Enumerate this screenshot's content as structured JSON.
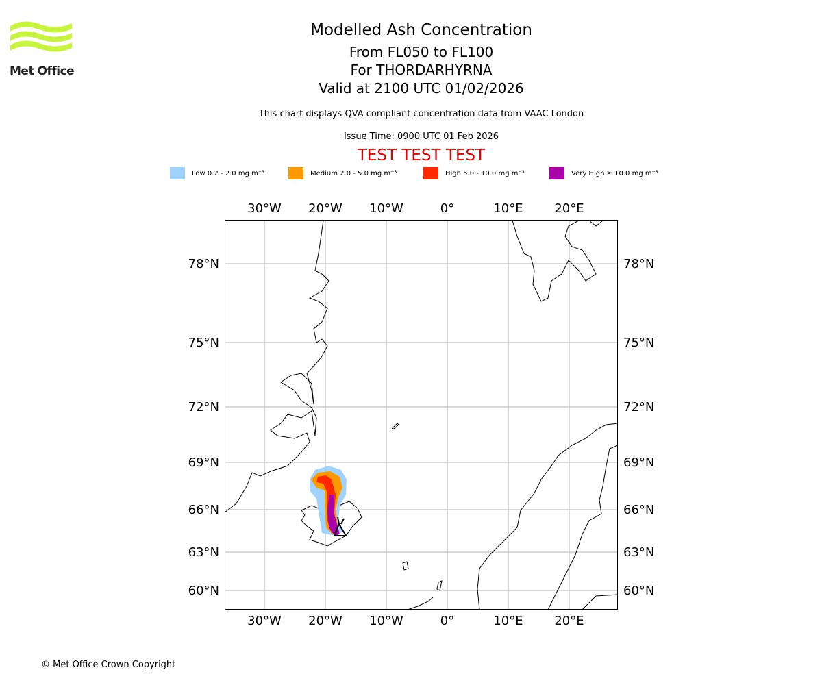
{
  "logo": {
    "text": "Met Office"
  },
  "title": {
    "line1": "Modelled Ash Concentration",
    "line2": "From FL050 to FL100",
    "line3": "For THORDARHYRNA",
    "line4": "Valid at 2100 UTC 01/02/2026"
  },
  "subtitle": "This chart displays QVA compliant concentration data from VAAC London",
  "issue_time": "Issue Time: 0900 UTC 01 Feb 2026",
  "test_banner": "TEST TEST TEST",
  "legend": [
    {
      "label": "Low 0.2 - 2.0 mg m⁻³",
      "color": "#a0d2ff"
    },
    {
      "label": "Medium 2.0 - 5.0 mg m⁻³",
      "color": "#ff9900"
    },
    {
      "label": "High 5.0 - 10.0 mg m⁻³",
      "color": "#ff2800"
    },
    {
      "label": "Very High ≥ 10.0 mg m⁻³",
      "color": "#aa00aa"
    }
  ],
  "chart_data": {
    "type": "map",
    "lon_ticks": [
      {
        "value": -30,
        "label": "30°W"
      },
      {
        "value": -20,
        "label": "20°W"
      },
      {
        "value": -10,
        "label": "10°W"
      },
      {
        "value": 0,
        "label": "0°"
      },
      {
        "value": 10,
        "label": "10°E"
      },
      {
        "value": 20,
        "label": "20°E"
      }
    ],
    "lat_ticks": [
      {
        "value": 78,
        "label": "78°N"
      },
      {
        "value": 75,
        "label": "75°N"
      },
      {
        "value": 72,
        "label": "72°N"
      },
      {
        "value": 69,
        "label": "69°N"
      },
      {
        "value": 66,
        "label": "66°N"
      },
      {
        "value": 63,
        "label": "63°N"
      },
      {
        "value": 60,
        "label": "60°N"
      }
    ],
    "extent": {
      "lon": [
        -36.5,
        28
      ],
      "lat": [
        59,
        79.5
      ]
    },
    "volcano": {
      "name": "THORDARHYRNA",
      "lon": -17.6,
      "lat": 64.3
    },
    "grid": true
  },
  "copyright": "© Met Office Crown Copyright"
}
